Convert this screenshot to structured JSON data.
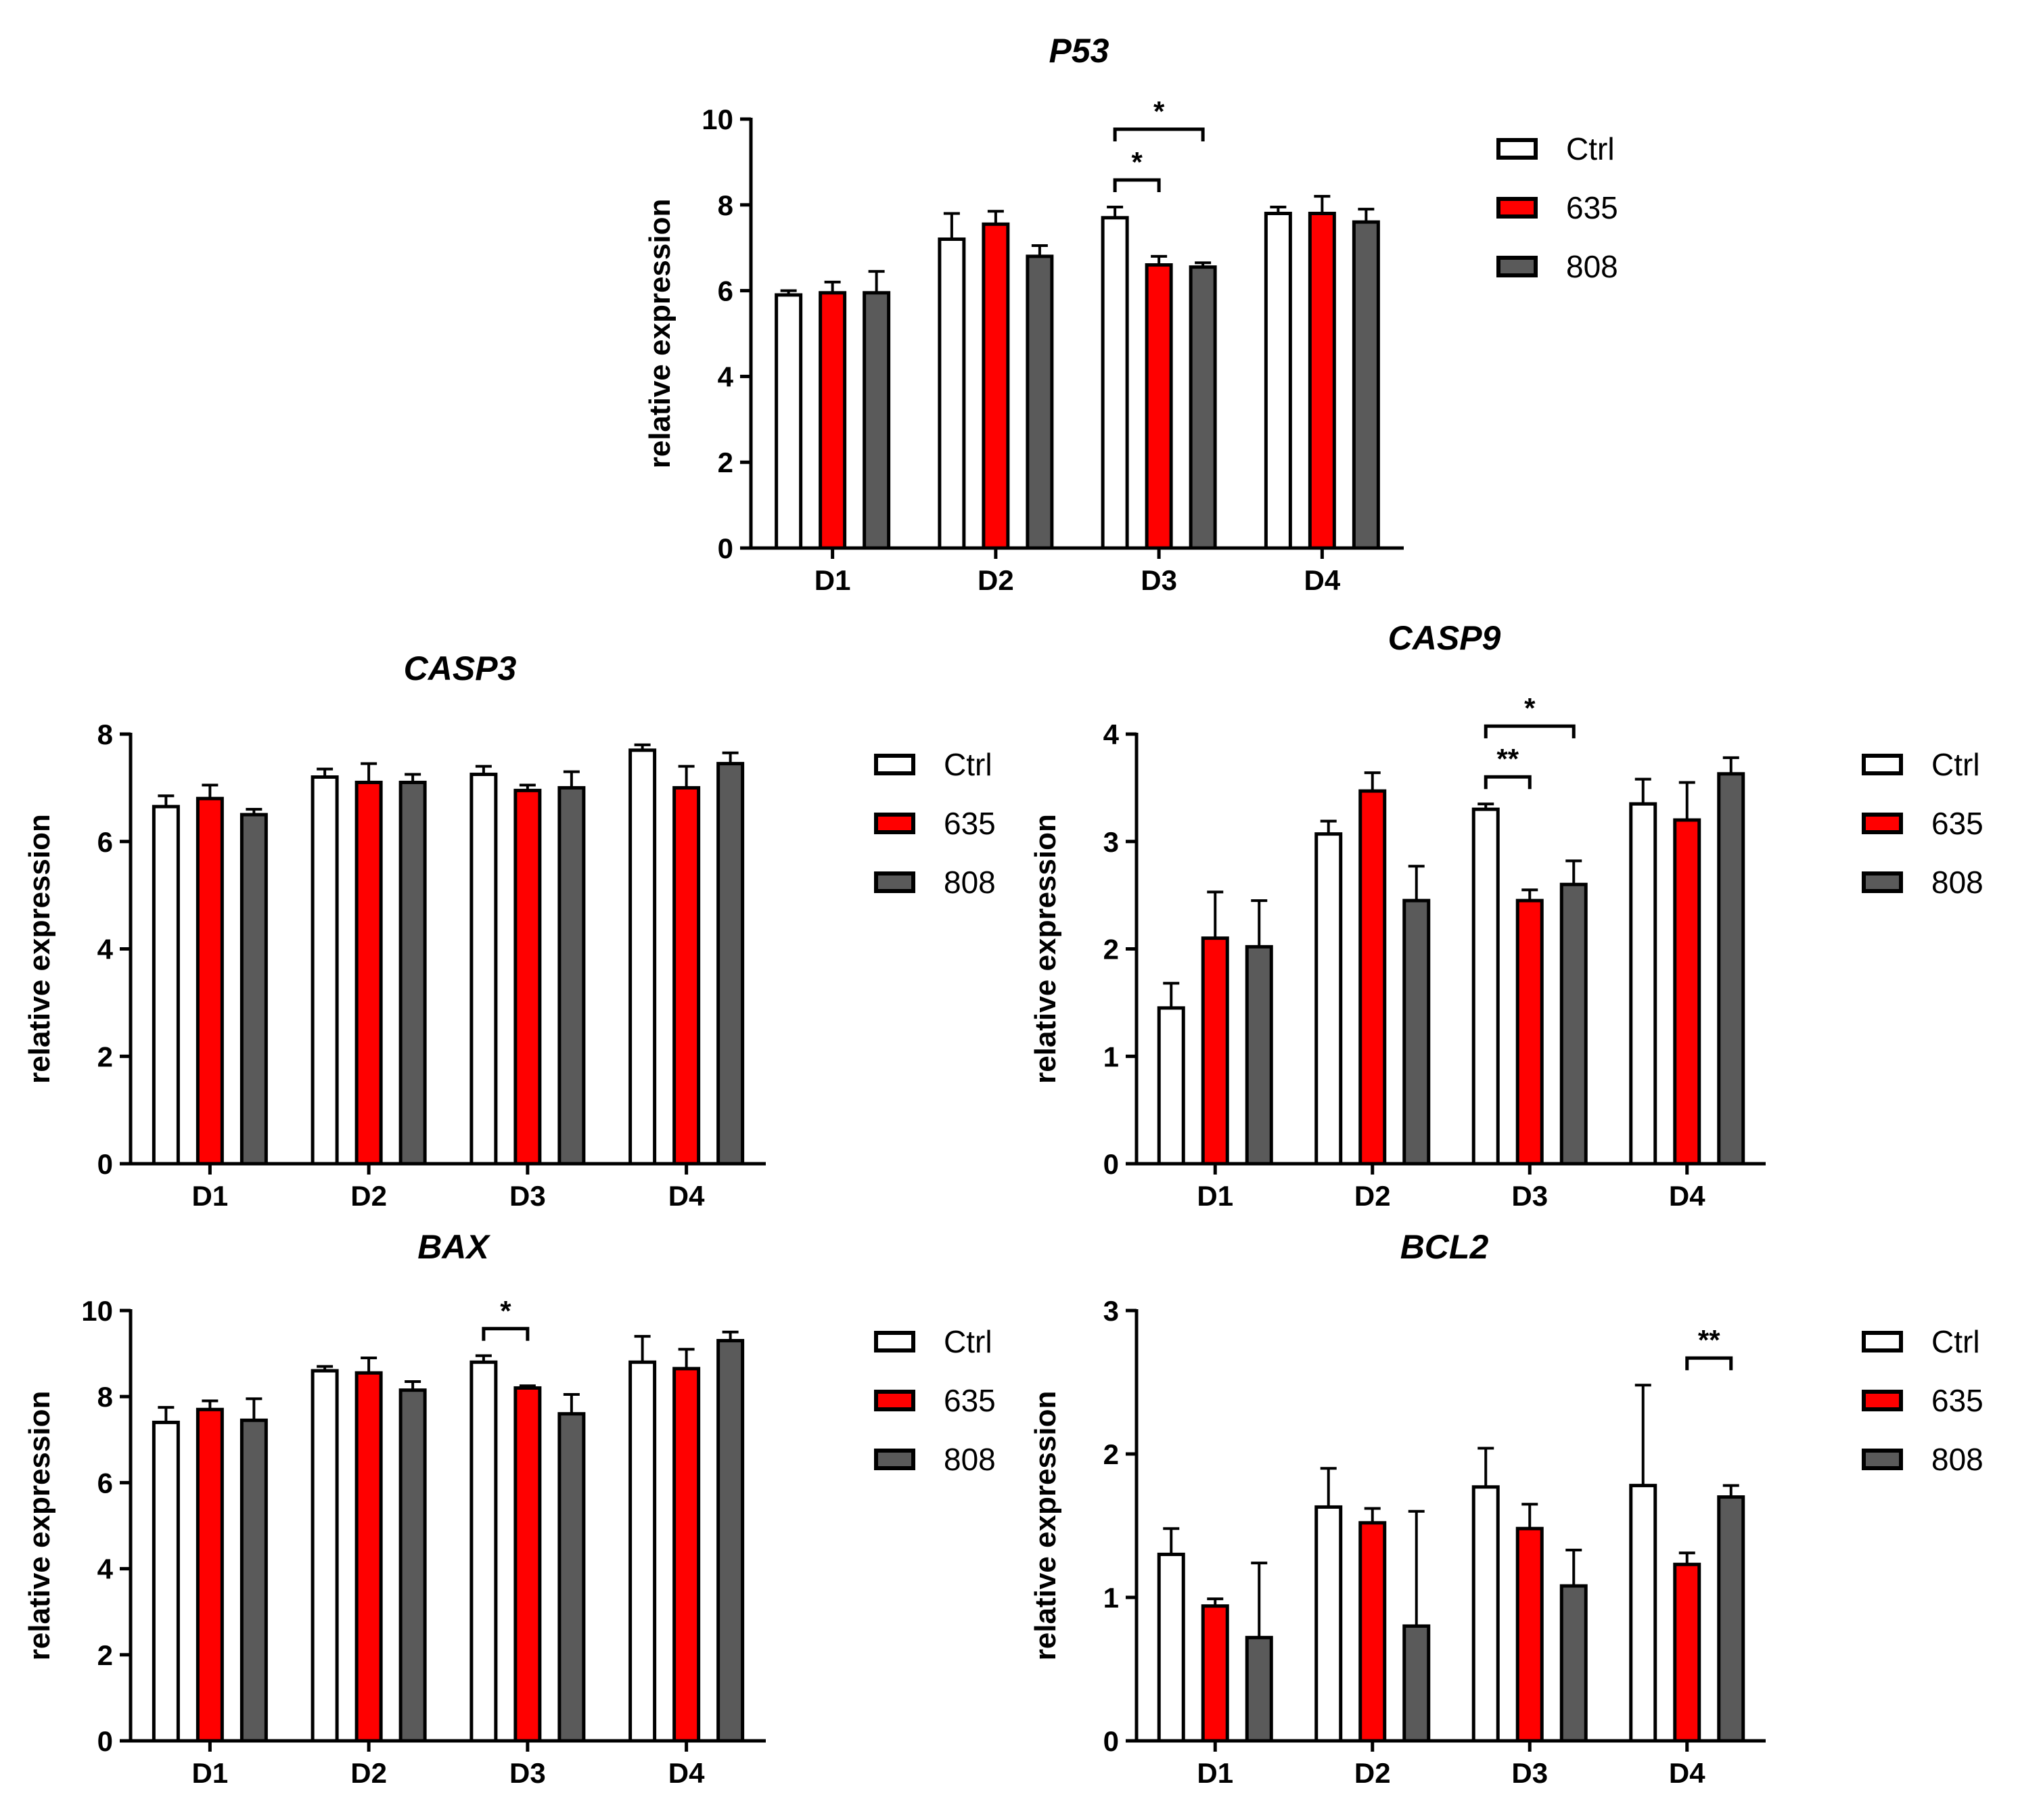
{
  "figure": {
    "legend_labels": [
      "Ctrl",
      "635",
      "808"
    ],
    "series_colors": {
      "Ctrl": "#ffffff",
      "635": "#ff0000",
      "808": "#5a5a5a"
    },
    "axis_color": "#000000"
  },
  "chart_data": [
    {
      "id": "p53",
      "type": "bar",
      "title": "P53",
      "ylabel": "relative expression",
      "xlabel": "",
      "categories": [
        "D1",
        "D2",
        "D3",
        "D4"
      ],
      "ylim": [
        0,
        10
      ],
      "yticks": [
        0,
        2,
        4,
        6,
        8,
        10
      ],
      "yticklabels": [
        "0",
        "2",
        "4",
        "6",
        "8",
        "10"
      ],
      "legend_position": "right",
      "series": [
        {
          "name": "Ctrl",
          "values": [
            5.9,
            7.2,
            7.7,
            7.8
          ],
          "errors": [
            0.1,
            0.6,
            0.25,
            0.15
          ]
        },
        {
          "name": "635",
          "values": [
            5.95,
            7.55,
            6.6,
            7.8
          ],
          "errors": [
            0.25,
            0.3,
            0.2,
            0.4
          ]
        },
        {
          "name": "808",
          "values": [
            5.95,
            6.8,
            6.55,
            7.6
          ],
          "errors": [
            0.5,
            0.25,
            0.1,
            0.3
          ]
        }
      ],
      "significance": [
        {
          "category": 2,
          "from": 0,
          "to": 2,
          "label": "*",
          "level": 1
        },
        {
          "category": 2,
          "from": 0,
          "to": 1,
          "label": "*",
          "level": 0
        }
      ]
    },
    {
      "id": "casp3",
      "type": "bar",
      "title": "CASP3",
      "ylabel": "relative expression",
      "xlabel": "",
      "categories": [
        "D1",
        "D2",
        "D3",
        "D4"
      ],
      "ylim": [
        0,
        8
      ],
      "yticks": [
        0,
        2,
        4,
        6,
        8
      ],
      "yticklabels": [
        "0",
        "2",
        "4",
        "6",
        "8"
      ],
      "legend_position": "right",
      "series": [
        {
          "name": "Ctrl",
          "values": [
            6.65,
            7.2,
            7.25,
            7.7
          ],
          "errors": [
            0.2,
            0.15,
            0.15,
            0.1
          ]
        },
        {
          "name": "635",
          "values": [
            6.8,
            7.1,
            6.95,
            7.0
          ],
          "errors": [
            0.25,
            0.35,
            0.1,
            0.4
          ]
        },
        {
          "name": "808",
          "values": [
            6.5,
            7.1,
            7.0,
            7.45
          ],
          "errors": [
            0.1,
            0.15,
            0.3,
            0.2
          ]
        }
      ],
      "significance": []
    },
    {
      "id": "casp9",
      "type": "bar",
      "title": "CASP9",
      "ylabel": "relative expression",
      "xlabel": "",
      "categories": [
        "D1",
        "D2",
        "D3",
        "D4"
      ],
      "ylim": [
        0,
        4
      ],
      "yticks": [
        0,
        1,
        2,
        3,
        4
      ],
      "yticklabels": [
        "0",
        "1",
        "2",
        "3",
        "4"
      ],
      "legend_position": "right",
      "series": [
        {
          "name": "Ctrl",
          "values": [
            1.45,
            3.07,
            3.3,
            3.35
          ],
          "errors": [
            0.23,
            0.12,
            0.05,
            0.23
          ]
        },
        {
          "name": "635",
          "values": [
            2.1,
            3.47,
            2.45,
            3.2
          ],
          "errors": [
            0.43,
            0.17,
            0.1,
            0.35
          ]
        },
        {
          "name": "808",
          "values": [
            2.02,
            2.45,
            2.6,
            3.63
          ],
          "errors": [
            0.43,
            0.32,
            0.22,
            0.15
          ]
        }
      ],
      "significance": [
        {
          "category": 2,
          "from": 0,
          "to": 2,
          "label": "*",
          "level": 1
        },
        {
          "category": 2,
          "from": 0,
          "to": 1,
          "label": "**",
          "level": 0
        }
      ]
    },
    {
      "id": "bax",
      "type": "bar",
      "title": "BAX",
      "ylabel": "relative expression",
      "xlabel": "",
      "categories": [
        "D1",
        "D2",
        "D3",
        "D4"
      ],
      "ylim": [
        0,
        10
      ],
      "yticks": [
        0,
        2,
        4,
        6,
        8,
        10
      ],
      "yticklabels": [
        "0",
        "2",
        "4",
        "6",
        "8",
        "10"
      ],
      "legend_position": "right",
      "series": [
        {
          "name": "Ctrl",
          "values": [
            7.4,
            8.6,
            8.8,
            8.8
          ],
          "errors": [
            0.35,
            0.1,
            0.15,
            0.6
          ]
        },
        {
          "name": "635",
          "values": [
            7.7,
            8.55,
            8.2,
            8.65
          ],
          "errors": [
            0.2,
            0.35,
            0.05,
            0.45
          ]
        },
        {
          "name": "808",
          "values": [
            7.45,
            8.15,
            7.6,
            9.3
          ],
          "errors": [
            0.5,
            0.2,
            0.45,
            0.2
          ]
        }
      ],
      "significance": [
        {
          "category": 2,
          "from": 0,
          "to": 1,
          "label": "*",
          "level": 0
        }
      ]
    },
    {
      "id": "bcl2",
      "type": "bar",
      "title": "BCL2",
      "ylabel": "relative expression",
      "xlabel": "",
      "categories": [
        "D1",
        "D2",
        "D3",
        "D4"
      ],
      "ylim": [
        0,
        3
      ],
      "yticks": [
        0,
        1,
        2,
        3
      ],
      "yticklabels": [
        "0",
        "1",
        "2",
        "3"
      ],
      "legend_position": "right",
      "series": [
        {
          "name": "Ctrl",
          "values": [
            1.3,
            1.63,
            1.77,
            1.78
          ],
          "errors": [
            0.18,
            0.27,
            0.27,
            0.7
          ]
        },
        {
          "name": "635",
          "values": [
            0.94,
            1.52,
            1.48,
            1.23
          ],
          "errors": [
            0.05,
            0.1,
            0.17,
            0.08
          ]
        },
        {
          "name": "808",
          "values": [
            0.72,
            0.8,
            1.08,
            1.7
          ],
          "errors": [
            0.52,
            0.8,
            0.25,
            0.08
          ]
        }
      ],
      "significance": [
        {
          "category": 3,
          "from": 1,
          "to": 2,
          "label": "**",
          "level": 0
        }
      ]
    }
  ]
}
